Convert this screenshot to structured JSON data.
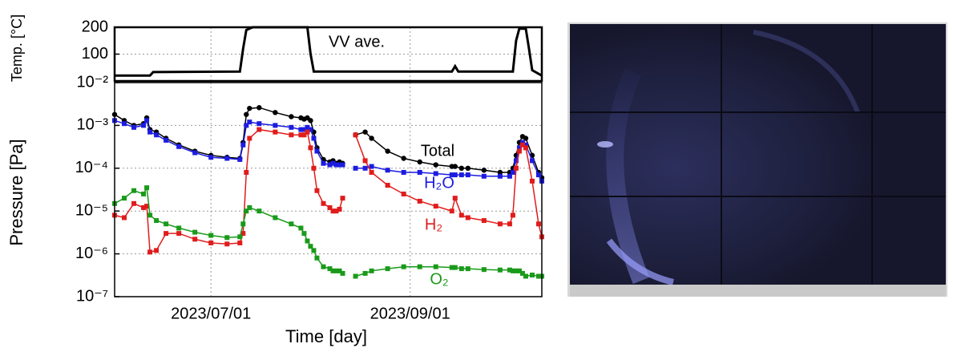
{
  "chart_data": [
    {
      "type": "line",
      "ylabel": "Temp. [°C]",
      "x": [
        "2023/06/01",
        "2023/06/12",
        "2023/06/13",
        "2023/07/10",
        "2023/07/11",
        "2023/07/12",
        "2023/07/14",
        "2023/07/31",
        "2023/08/01",
        "2023/08/02",
        "2023/09/14",
        "2023/09/15",
        "2023/09/16",
        "2023/10/03",
        "2023/10/04",
        "2023/10/05",
        "2023/10/07",
        "2023/10/08",
        "2023/10/09",
        "2023/10/12"
      ],
      "series": [
        {
          "name": "VV ave.",
          "color": "#000000",
          "values": [
            20,
            20,
            33,
            35,
            120,
            190,
            200,
            200,
            100,
            35,
            35,
            55,
            35,
            35,
            150,
            195,
            195,
            120,
            40,
            20
          ]
        }
      ],
      "xlim": [
        "2023/06/01",
        "2023/10/12"
      ],
      "xticks": [
        "2023/07/01",
        "2023/09/01"
      ],
      "ylim": [
        0,
        200
      ],
      "yticks": [
        100,
        200
      ],
      "grid": true
    },
    {
      "type": "line",
      "ylabel": "Pressure [Pa]",
      "xlabel": "Time [day]",
      "log_scale": true,
      "x": [
        "2023/06/01",
        "2023/06/04",
        "2023/06/07",
        "2023/06/10",
        "2023/06/11",
        "2023/06/12",
        "2023/06/14",
        "2023/06/17",
        "2023/06/21",
        "2023/06/26",
        "2023/07/01",
        "2023/07/06",
        "2023/07/10",
        "2023/07/11",
        "2023/07/12",
        "2023/07/13",
        "2023/07/16",
        "2023/07/21",
        "2023/07/26",
        "2023/07/29",
        "2023/07/30",
        "2023/07/31",
        "2023/08/01",
        "2023/08/02",
        "2023/08/03",
        "2023/08/05",
        "2023/08/07",
        "2023/08/08",
        "2023/08/09",
        "2023/08/10",
        "2023/08/11",
        "2023/08/12",
        "2023/08/15",
        "2023/08/18",
        "2023/08/20",
        "2023/08/25",
        "2023/08/30",
        "2023/09/04",
        "2023/09/09",
        "2023/09/14",
        "2023/09/15",
        "2023/09/17",
        "2023/09/19",
        "2023/09/24",
        "2023/09/29",
        "2023/10/02",
        "2023/10/03",
        "2023/10/04",
        "2023/10/05",
        "2023/10/06",
        "2023/10/07",
        "2023/10/09",
        "2023/10/11",
        "2023/10/12"
      ],
      "series": [
        {
          "name": "Total",
          "color": "#000000",
          "marker": "circle",
          "values": [
            0.0018,
            0.0013,
            0.001,
            0.0011,
            0.0015,
            0.0008,
            0.0007,
            0.0005,
            0.00035,
            0.00025,
            0.0002,
            0.00018,
            0.00017,
            0.0004,
            0.0018,
            0.0025,
            0.0026,
            0.002,
            0.0016,
            0.0015,
            0.0014,
            0.0015,
            0.0013,
            0.0007,
            0.0003,
            0.00016,
            0.00014,
            0.00015,
            0.00013,
            0.00014,
            0.00013,
            null,
            0.0006,
            0.0007,
            0.0005,
            0.00025,
            0.00017,
            0.00014,
            0.00012,
            0.00011,
            0.00011,
            0.0001,
            0.0001,
            9e-05,
            8e-05,
            8e-05,
            0.0001,
            0.0002,
            0.0004,
            0.00055,
            0.0005,
            0.0002,
            8e-05,
            6e-05
          ]
        },
        {
          "name": "H₂O",
          "color": "#1c1ce0",
          "marker": "square",
          "values": [
            0.0013,
            0.0011,
            0.0009,
            0.001,
            0.0013,
            0.0007,
            0.0006,
            0.00045,
            0.00032,
            0.00023,
            0.00018,
            0.00017,
            0.00016,
            0.00035,
            0.001,
            0.0012,
            0.0011,
            0.001,
            0.0009,
            0.0008,
            0.0008,
            0.0009,
            0.0008,
            0.0005,
            0.00025,
            0.00013,
            0.00012,
            0.00013,
            0.00012,
            0.00012,
            0.00012,
            null,
            0.0001,
            0.0001,
            0.00011,
            9e-05,
            8e-05,
            8e-05,
            7.5e-05,
            7e-05,
            7e-05,
            7e-05,
            7e-05,
            6.5e-05,
            6.5e-05,
            6.5e-05,
            8e-05,
            0.00015,
            0.0003,
            0.0004,
            0.00035,
            0.00015,
            7e-05,
            5e-05
          ]
        },
        {
          "name": "H₂",
          "color": "#e01c1c",
          "marker": "square",
          "values": [
            8e-06,
            7e-06,
            1.5e-05,
            1.2e-05,
            1.3e-05,
            1.1e-06,
            1.2e-06,
            3e-06,
            3e-06,
            2.2e-06,
            1.8e-06,
            1.7e-06,
            1.8e-06,
            3e-06,
            8e-05,
            0.0005,
            0.0008,
            0.0007,
            0.0006,
            0.0006,
            0.0006,
            0.0007,
            0.0003,
            0.0001,
            3e-05,
            1.5e-05,
            1.2e-05,
            1e-05,
            1e-05,
            1.1e-05,
            2e-05,
            null,
            0.0006,
            0.00015,
            8e-05,
            4e-05,
            2.5e-05,
            1.7e-05,
            1.3e-05,
            1e-05,
            2e-05,
            8e-06,
            7e-06,
            6e-06,
            5e-06,
            5e-06,
            8e-06,
            0.0001,
            0.00025,
            0.00035,
            0.0003,
            5e-05,
            5e-06,
            2.5e-06
          ]
        },
        {
          "name": "O₂",
          "color": "#1a9a1a",
          "marker": "square",
          "values": [
            1.5e-05,
            2e-05,
            3e-05,
            2.5e-05,
            3.5e-05,
            8e-06,
            6e-06,
            5e-06,
            4e-06,
            3.2e-06,
            2.7e-06,
            2.4e-06,
            2.5e-06,
            5e-06,
            1e-05,
            1.2e-05,
            1e-05,
            7e-06,
            5e-06,
            4e-06,
            3e-06,
            2e-06,
            1.5e-06,
            1.2e-06,
            8e-07,
            5e-07,
            4.5e-07,
            4e-07,
            4e-07,
            4e-07,
            3.5e-07,
            null,
            3e-07,
            3.5e-07,
            4e-07,
            4.5e-07,
            5e-07,
            5e-07,
            5e-07,
            4.8e-07,
            4.8e-07,
            4.5e-07,
            4.5e-07,
            4.3e-07,
            4.2e-07,
            4.2e-07,
            4e-07,
            4e-07,
            4e-07,
            3.5e-07,
            3e-07,
            3.2e-07,
            3e-07,
            3e-07
          ]
        }
      ],
      "xlim": [
        "2023/06/01",
        "2023/10/12"
      ],
      "xticks": [
        "2023/07/01",
        "2023/09/01"
      ],
      "ylim": [
        1e-07,
        0.01
      ],
      "yticks": [
        {
          "value": 1e-07,
          "label": "10⁻⁷"
        },
        {
          "value": 1e-06,
          "label": "10⁻⁶"
        },
        {
          "value": 1e-05,
          "label": "10⁻⁵"
        },
        {
          "value": 0.0001,
          "label": "10⁻⁴"
        },
        {
          "value": 0.001,
          "label": "10⁻³"
        },
        {
          "value": 0.01,
          "label": "10⁻²"
        }
      ],
      "grid": true
    }
  ]
}
